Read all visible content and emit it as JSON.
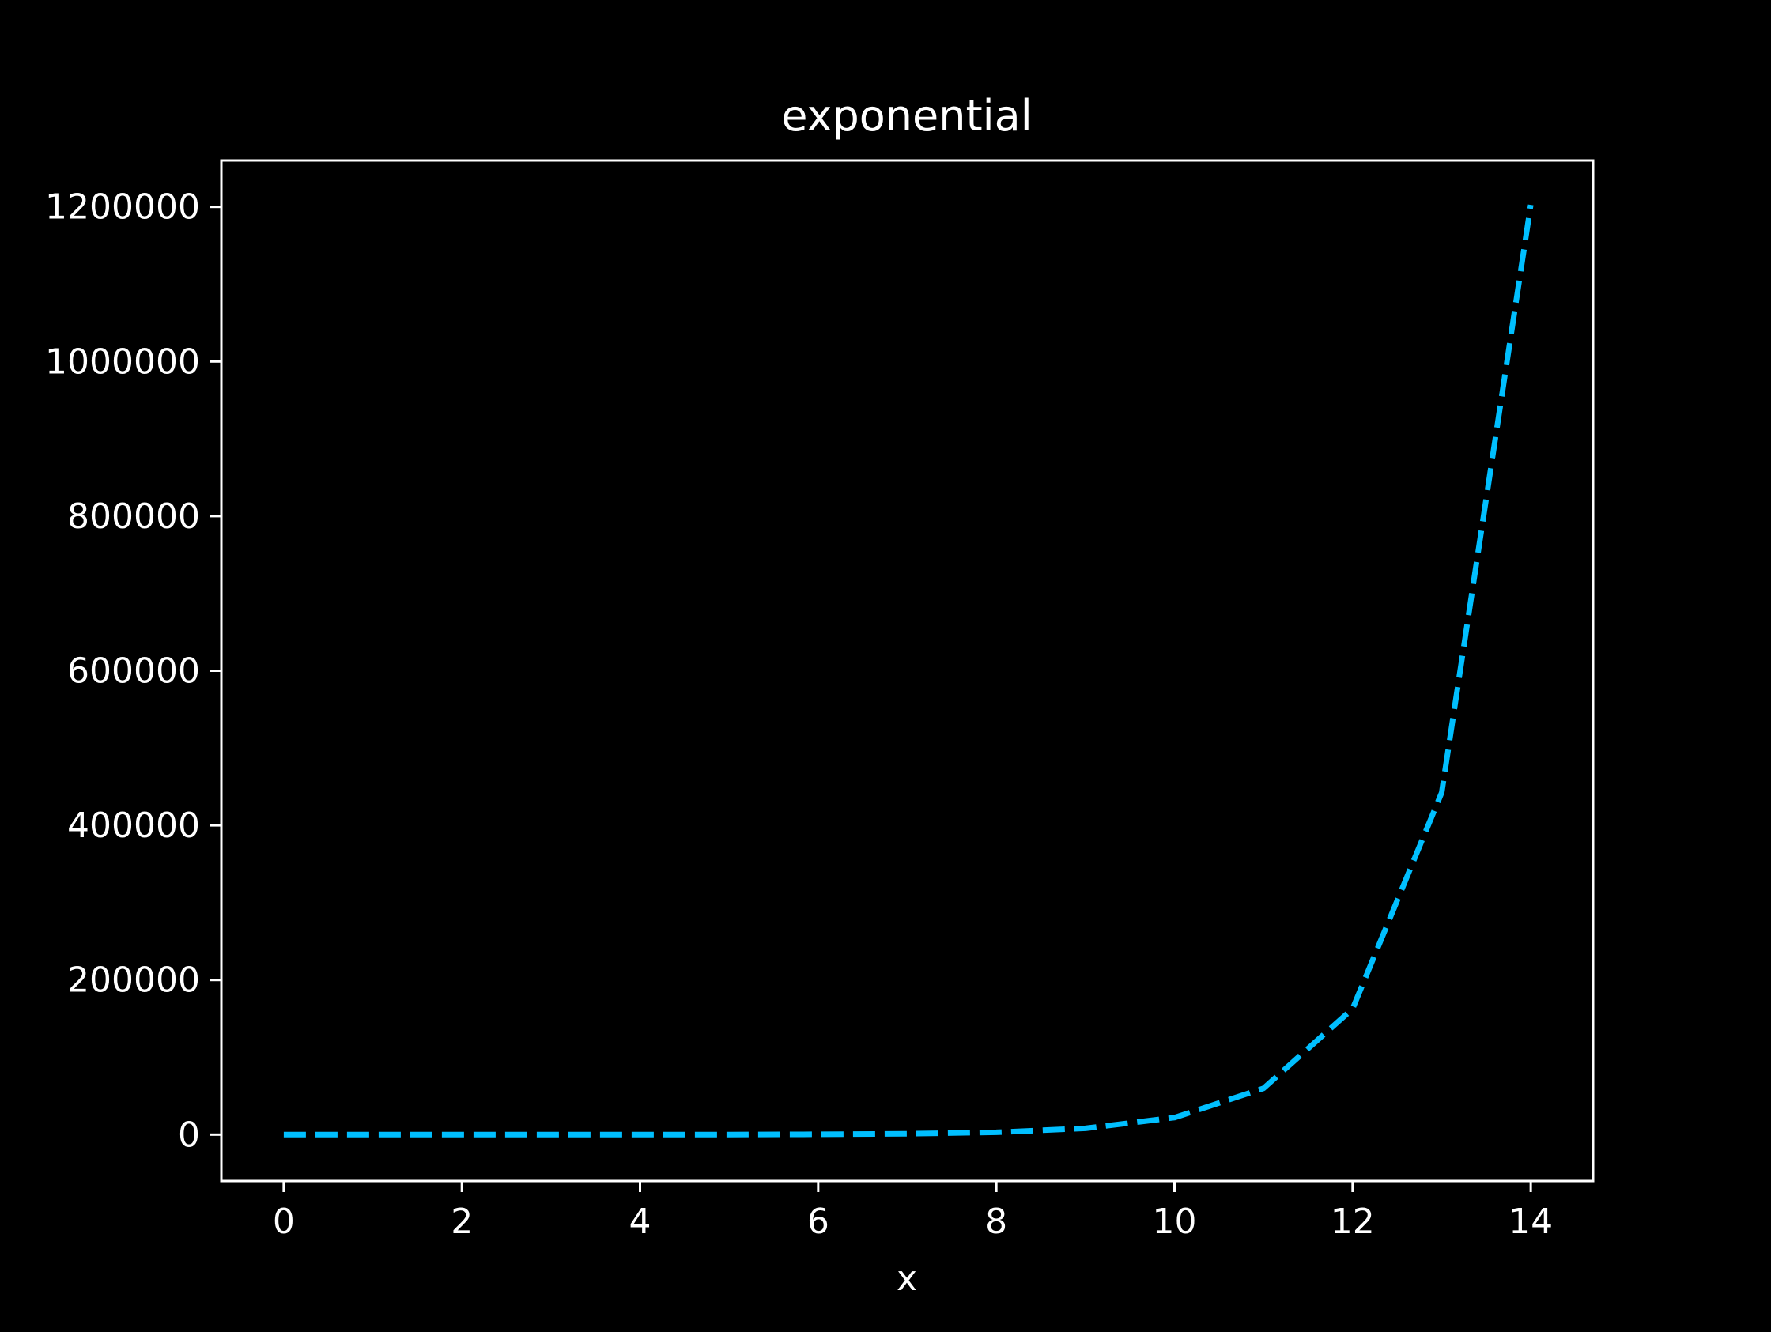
{
  "chart_data": {
    "type": "line",
    "title": "exponential",
    "xlabel": "x",
    "ylabel": "",
    "xlim": [
      -0.7,
      14.7
    ],
    "ylim": [
      -60000,
      1260000
    ],
    "x_ticks": [
      0,
      2,
      4,
      6,
      8,
      10,
      12,
      14
    ],
    "x_tick_labels": [
      "0",
      "2",
      "4",
      "6",
      "8",
      "10",
      "12",
      "14"
    ],
    "y_ticks": [
      0,
      200000,
      400000,
      600000,
      800000,
      1000000,
      1200000
    ],
    "y_tick_labels": [
      "0",
      "200000",
      "400000",
      "600000",
      "800000",
      "1000000",
      "1200000"
    ],
    "grid": false,
    "legend": "none",
    "background_color": "#000000",
    "axes_color": "#ffffff",
    "series": [
      {
        "line_style": "dashed",
        "color": "#00bfff",
        "x": [
          0,
          1,
          2,
          3,
          4,
          5,
          6,
          7,
          8,
          9,
          10,
          11,
          12,
          13,
          14
        ],
        "y": [
          1,
          3,
          7,
          20,
          55,
          148,
          403,
          1097,
          2981,
          8103,
          22026,
          59874,
          162755,
          442413,
          1202604
        ]
      }
    ]
  }
}
